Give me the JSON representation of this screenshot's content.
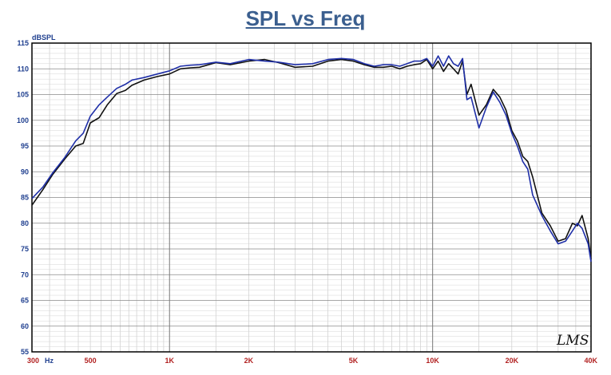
{
  "chart_data": {
    "type": "line",
    "title": "SPL vs Freq",
    "ylabel": "dBSPL",
    "xunit": "Hz",
    "xscale": "log",
    "xlim": [
      300,
      40000
    ],
    "ylim": [
      55,
      115
    ],
    "grid": true,
    "yticks": [
      115,
      110,
      105,
      100,
      95,
      90,
      85,
      80,
      75,
      70,
      65,
      60,
      55
    ],
    "xticks": [
      {
        "value": 300,
        "label": "300"
      },
      {
        "value": 500,
        "label": "500"
      },
      {
        "value": 1000,
        "label": "1K"
      },
      {
        "value": 2000,
        "label": "2K"
      },
      {
        "value": 5000,
        "label": "5K"
      },
      {
        "value": 10000,
        "label": "10K"
      },
      {
        "value": 20000,
        "label": "20K"
      },
      {
        "value": 40000,
        "label": "40K"
      }
    ],
    "watermark": "LMS",
    "series": [
      {
        "color": "#111111",
        "x": [
          300,
          330,
          360,
          400,
          440,
          470,
          500,
          540,
          580,
          630,
          680,
          720,
          800,
          900,
          1000,
          1100,
          1200,
          1300,
          1500,
          1700,
          2000,
          2300,
          2600,
          3000,
          3500,
          4000,
          4500,
          5000,
          5500,
          6000,
          6500,
          7000,
          7500,
          8000,
          8500,
          9000,
          9500,
          10000,
          10500,
          11000,
          11500,
          12000,
          12500,
          13000,
          13500,
          14000,
          15000,
          16000,
          17000,
          18000,
          19000,
          20000,
          21000,
          22000,
          23000,
          24000,
          26000,
          28000,
          30000,
          32000,
          34000,
          35500,
          37000,
          39000,
          40000
        ],
        "y": [
          83.5,
          86.5,
          89.5,
          92.5,
          95.0,
          95.5,
          99.5,
          100.5,
          103.0,
          105.2,
          105.8,
          106.8,
          107.8,
          108.5,
          109.0,
          110.0,
          110.2,
          110.3,
          111.2,
          110.8,
          111.5,
          111.8,
          111.2,
          110.3,
          110.5,
          111.5,
          111.8,
          111.5,
          110.8,
          110.3,
          110.3,
          110.5,
          110.0,
          110.5,
          110.8,
          111.0,
          111.8,
          110.0,
          111.5,
          109.5,
          111.0,
          110.0,
          109.0,
          111.5,
          105.0,
          107.0,
          101.0,
          103.0,
          106.0,
          104.5,
          102.0,
          98.0,
          96.0,
          93.0,
          92.0,
          89.0,
          82.0,
          79.5,
          76.5,
          77.0,
          80.0,
          79.5,
          81.5,
          77.0,
          73.0
        ]
      },
      {
        "color": "#1f2fa8",
        "x": [
          300,
          330,
          360,
          400,
          440,
          470,
          500,
          540,
          580,
          630,
          680,
          720,
          800,
          900,
          1000,
          1100,
          1200,
          1300,
          1500,
          1700,
          2000,
          2300,
          2600,
          3000,
          3500,
          4000,
          4500,
          5000,
          5500,
          6000,
          6500,
          7000,
          7500,
          8000,
          8500,
          9000,
          9500,
          10000,
          10500,
          11000,
          11500,
          12000,
          12500,
          13000,
          13500,
          14000,
          15000,
          16000,
          17000,
          18000,
          19000,
          20000,
          21000,
          22000,
          23000,
          24000,
          26000,
          28000,
          30000,
          32000,
          34000,
          35500,
          37000,
          39000,
          40000
        ],
        "y": [
          84.8,
          87.0,
          89.8,
          92.8,
          96.0,
          97.5,
          100.8,
          103.0,
          104.5,
          106.2,
          107.0,
          107.8,
          108.3,
          109.0,
          109.6,
          110.5,
          110.7,
          110.8,
          111.3,
          111.0,
          111.8,
          111.5,
          111.3,
          110.8,
          111.0,
          111.8,
          112.0,
          111.8,
          111.0,
          110.5,
          110.8,
          110.8,
          110.5,
          111.0,
          111.5,
          111.5,
          112.0,
          110.5,
          112.5,
          110.5,
          112.5,
          111.0,
          110.5,
          112.0,
          104.0,
          104.5,
          98.5,
          102.5,
          105.5,
          103.5,
          101.0,
          97.5,
          95.0,
          92.0,
          90.5,
          85.5,
          81.5,
          78.5,
          76.0,
          76.5,
          78.5,
          80.0,
          79.0,
          76.0,
          72.5
        ]
      }
    ]
  }
}
